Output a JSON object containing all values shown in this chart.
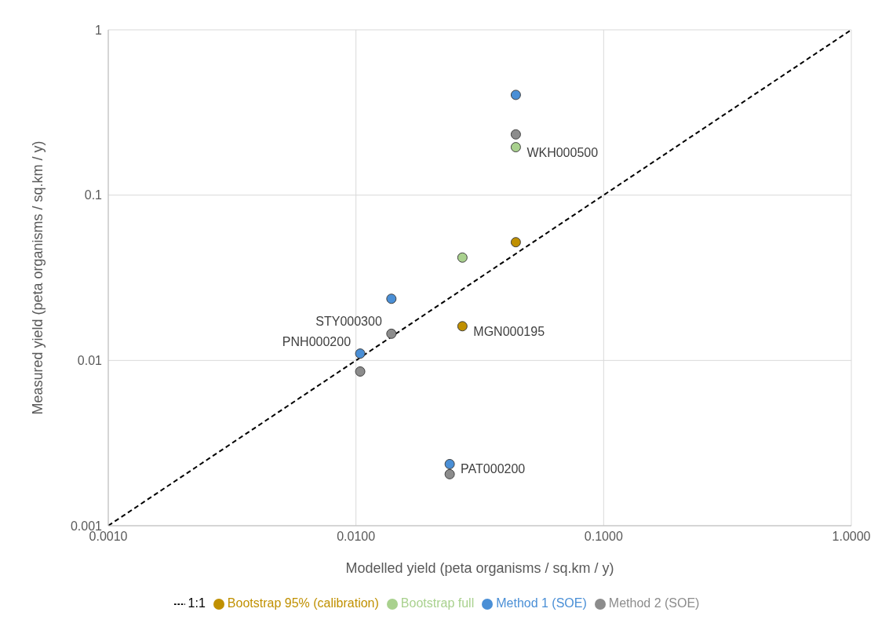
{
  "chart_data": {
    "type": "scatter",
    "xlabel": "Modelled yield (peta organisms / sq.km / y)",
    "ylabel": "Measured yield (peta organisms / sq.km / y)",
    "log": "xy",
    "grid": true,
    "legend": "bottom",
    "marker": "circle",
    "xlim": [
      0.001,
      1
    ],
    "xticks": [
      {
        "value": 0.001,
        "label": "0.0010"
      },
      {
        "value": 0.01,
        "label": "0.0100"
      },
      {
        "value": 0.1,
        "label": "0.1000"
      },
      {
        "value": 1,
        "label": "1.0000"
      }
    ],
    "ylim": [
      0.001,
      1
    ],
    "yticks": [
      0.001,
      0.01,
      0.1,
      1
    ],
    "series": [
      {
        "name": "Method 1 (SOE)",
        "color": "#4a8fd6",
        "x": [
          0.0442,
          0.0139,
          0.0104,
          0.0239
        ],
        "values": [
          0.404,
          0.0236,
          0.011,
          0.00236
        ]
      },
      {
        "name": "Method 2 (SOE)",
        "color": "#8c8c8c",
        "x": [
          0.0442,
          0.0139,
          0.0104,
          0.0239
        ],
        "values": [
          0.233,
          0.0145,
          0.00857,
          0.00205
        ]
      },
      {
        "name": "Bootstrap 95% (calibration)",
        "color": "#c09000",
        "x": [
          0.0442,
          0.0269
        ],
        "values": [
          0.0519,
          0.0161
        ]
      },
      {
        "name": "Bootstrap full",
        "color": "#a9d18e",
        "x": [
          0.0442,
          0.0269
        ],
        "values": [
          0.195,
          0.0419
        ]
      },
      {
        "name": "1:1",
        "type": "line",
        "color": "#000000",
        "line_style": "dashed",
        "marker": "none",
        "x": [
          0.001,
          1
        ],
        "values": [
          0.001,
          1
        ]
      }
    ],
    "annotations": [
      {
        "text": "WKH000500",
        "x": 0.0442,
        "y": 0.195
      },
      {
        "text": "MGN000195",
        "x": 0.0269,
        "y": 0.0161
      },
      {
        "text": "STY000300",
        "x": 0.0139,
        "y": 0.0145
      },
      {
        "text": "PNH000200",
        "x": 0.0104,
        "y": 0.011
      },
      {
        "text": "PAT000200",
        "x": 0.0239,
        "y": 0.00236
      }
    ]
  }
}
